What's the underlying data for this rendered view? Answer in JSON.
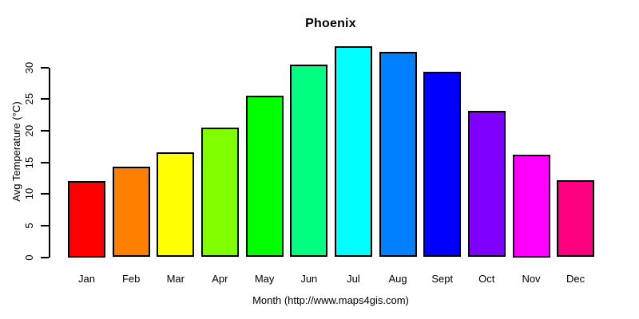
{
  "chart_data": {
    "type": "bar",
    "title": "Phoenix",
    "xlabel": "Month (http://www.maps4gis.com)",
    "ylabel": "Avg Temperature (°C)",
    "categories": [
      "Jan",
      "Feb",
      "Mar",
      "Apr",
      "May",
      "Jun",
      "Jul",
      "Aug",
      "Sept",
      "Oct",
      "Nov",
      "Dec"
    ],
    "values": [
      12.1,
      14.3,
      16.6,
      20.5,
      25.5,
      30.5,
      33.3,
      32.5,
      29.3,
      23.1,
      16.2,
      12.2
    ],
    "bar_colors": [
      "#FF0000",
      "#FF8000",
      "#FFFF00",
      "#80FF00",
      "#00FF00",
      "#00FF80",
      "#00FFFF",
      "#0080FF",
      "#0000FF",
      "#8000FF",
      "#FF00FF",
      "#FF0080"
    ],
    "bar_border_color": "#000000",
    "yticks": [
      0,
      5,
      10,
      15,
      20,
      25,
      30
    ],
    "ylim": [
      0,
      33.3
    ],
    "grid": false,
    "legend": "none",
    "background_color": "#FFFFFF",
    "text_color": "#000000"
  }
}
